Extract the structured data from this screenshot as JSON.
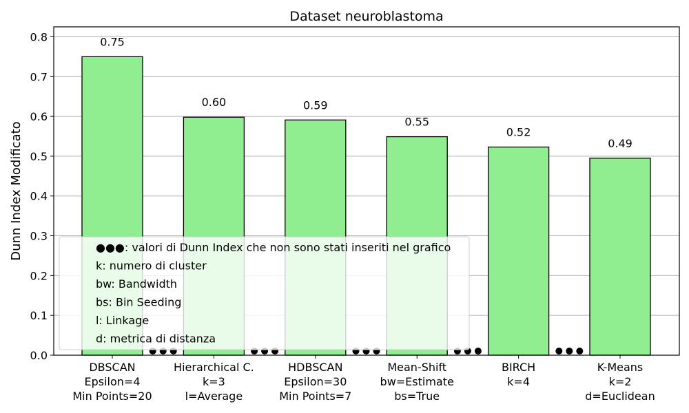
{
  "chart_data": {
    "type": "bar",
    "title": "Dataset neuroblastoma",
    "xlabel": "",
    "ylabel": "Dunn Index Modificato",
    "ylim": [
      0,
      0.825
    ],
    "yticks": [
      "0.0",
      "0.1",
      "0.2",
      "0.3",
      "0.4",
      "0.5",
      "0.6",
      "0.7",
      "0.8"
    ],
    "grid": "y",
    "categories": [
      [
        "DBSCAN",
        "Epsilon=4",
        "Min Points=20"
      ],
      [
        "Hierarchical C.",
        "k=3",
        "l=Average"
      ],
      [
        "HDBSCAN",
        "Epsilon=30",
        "Min Points=7"
      ],
      [
        "Mean-Shift",
        "bw=Estimate",
        "bs=True"
      ],
      [
        "BIRCH",
        "k=4"
      ],
      [
        "K-Means",
        "k=2",
        "d=Euclidean"
      ]
    ],
    "values": [
      0.75,
      0.598,
      0.591,
      0.549,
      0.523,
      0.495
    ],
    "value_labels": [
      "0.75",
      "0.60",
      "0.59",
      "0.55",
      "0.52",
      "0.49"
    ],
    "colors": {
      "bar": "#90ee90",
      "edge": "#000000",
      "dots": "#000000",
      "grid": "#b0b0b0"
    },
    "omitted_marker_groups": 5,
    "legend": {
      "placement": "lower-left",
      "entries": [
        "●●●: valori di Dunn Index che non sono stati inseriti nel grafico",
        "k: numero di cluster",
        "bw: Bandwidth",
        "bs: Bin Seeding",
        "l: Linkage",
        "d: metrica di distanza"
      ]
    }
  }
}
